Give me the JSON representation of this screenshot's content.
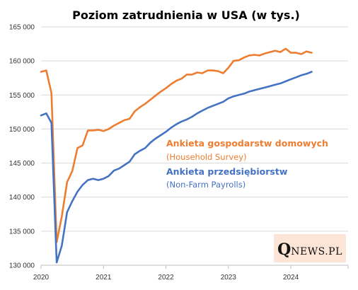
{
  "chart_data": {
    "type": "line",
    "title": "Poziom zatrudnienia w USA (w tys.)",
    "xlabel": "",
    "ylabel": "",
    "ylim": [
      130000,
      165000
    ],
    "yticks": [
      130000,
      135000,
      140000,
      145000,
      150000,
      155000,
      160000,
      165000
    ],
    "ytick_labels": [
      "130 000",
      "135 000",
      "140 000",
      "145 000",
      "150 000",
      "155 000",
      "160 000",
      "165 000"
    ],
    "xlim": [
      "2020-01",
      "2024-12"
    ],
    "xticks": [
      "2020-01",
      "2021-01",
      "2022-01",
      "2023-01",
      "2024-01"
    ],
    "xtick_labels": [
      "2020",
      "2021",
      "2022",
      "2023",
      "2024"
    ],
    "grid": "horizontal",
    "x": [
      "2020-01",
      "2020-02",
      "2020-03",
      "2020-04",
      "2020-05",
      "2020-06",
      "2020-07",
      "2020-08",
      "2020-09",
      "2020-10",
      "2020-11",
      "2020-12",
      "2021-01",
      "2021-02",
      "2021-03",
      "2021-04",
      "2021-05",
      "2021-06",
      "2021-07",
      "2021-08",
      "2021-09",
      "2021-10",
      "2021-11",
      "2021-12",
      "2022-01",
      "2022-02",
      "2022-03",
      "2022-04",
      "2022-05",
      "2022-06",
      "2022-07",
      "2022-08",
      "2022-09",
      "2022-10",
      "2022-11",
      "2022-12",
      "2023-01",
      "2023-02",
      "2023-03",
      "2023-04",
      "2023-05",
      "2023-06",
      "2023-07",
      "2023-08",
      "2023-09",
      "2023-10",
      "2023-11",
      "2023-12",
      "2024-01",
      "2024-02",
      "2024-03",
      "2024-04",
      "2024-05"
    ],
    "series": [
      {
        "name": "Ankieta gospodarstw domowych",
        "subtitle": "(Household Survey)",
        "color": "#ED7D31",
        "values": [
          158400,
          158600,
          155300,
          133400,
          137200,
          142200,
          143800,
          147200,
          147600,
          149800,
          149800,
          149900,
          149700,
          150000,
          150500,
          150900,
          151300,
          151500,
          152600,
          153200,
          153700,
          154300,
          154900,
          155500,
          156000,
          156600,
          157100,
          157400,
          158000,
          158000,
          158300,
          158200,
          158600,
          158600,
          158500,
          158200,
          159000,
          160000,
          160100,
          160500,
          160800,
          160900,
          160800,
          161100,
          161300,
          161500,
          161300,
          161800,
          161200,
          161200,
          161000,
          161400,
          161200
        ]
      },
      {
        "name": "Ankieta przedsiębiorstw",
        "subtitle": "(Non-Farm Payrolls)",
        "color": "#4472C4",
        "values": [
          152000,
          152300,
          150900,
          130400,
          132900,
          137800,
          139400,
          140800,
          141800,
          142500,
          142700,
          142500,
          142700,
          143100,
          143900,
          144200,
          144700,
          145200,
          146300,
          146800,
          147200,
          148000,
          148600,
          149100,
          149600,
          150200,
          150700,
          151100,
          151400,
          151800,
          152300,
          152700,
          153100,
          153400,
          153700,
          154000,
          154500,
          154800,
          155000,
          155200,
          155500,
          155700,
          155900,
          156100,
          156300,
          156500,
          156700,
          157000,
          157300,
          157600,
          157900,
          158100,
          158400
        ]
      }
    ]
  },
  "logo": {
    "text": "QNEWS.PL"
  }
}
